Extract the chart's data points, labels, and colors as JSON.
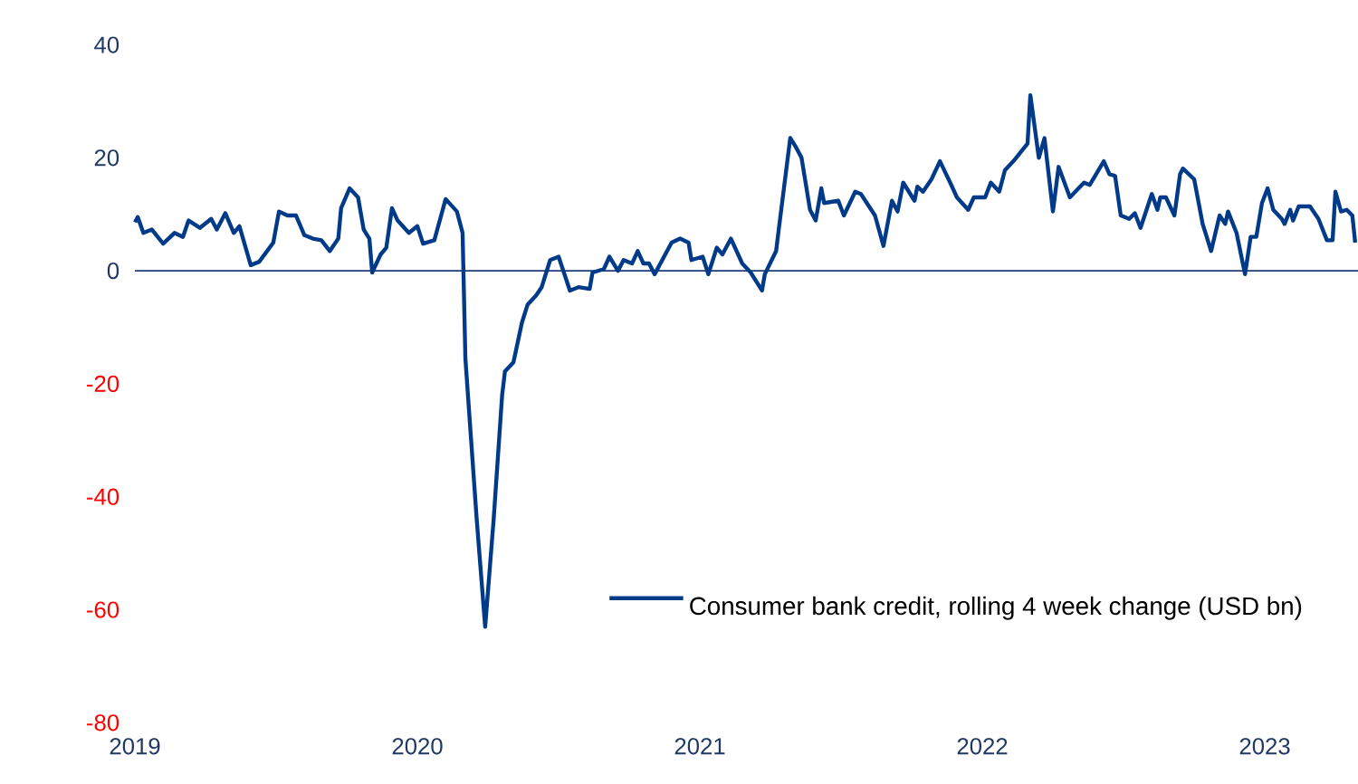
{
  "chart_data": {
    "type": "line",
    "xlim": [
      2019,
      2023.33
    ],
    "ylim": [
      -80,
      40
    ],
    "xticks": [
      2019,
      2020,
      2021,
      2022,
      2023
    ],
    "yticks": [
      -80,
      -60,
      -40,
      -20,
      0,
      20,
      40
    ],
    "legend": "bottom right",
    "ref_lines": [
      {
        "axis": "y",
        "value": 0,
        "color": "#1f3c78"
      }
    ],
    "series": [
      {
        "name": "Consumer bank credit, rolling 4 week change (USD bn)",
        "color": "#003a88",
        "x": [
          2019.0,
          2019.01,
          2019.03,
          2019.06,
          2019.1,
          2019.14,
          2019.17,
          2019.19,
          2019.23,
          2019.27,
          2019.29,
          2019.32,
          2019.35,
          2019.37,
          2019.41,
          2019.44,
          2019.49,
          2019.51,
          2019.54,
          2019.57,
          2019.6,
          2019.63,
          2019.66,
          2019.69,
          2019.72,
          2019.73,
          2019.76,
          2019.79,
          2019.81,
          2019.83,
          2019.84,
          2019.87,
          2019.89,
          2019.91,
          2019.93,
          2019.97,
          2020.0,
          2020.02,
          2020.06,
          2020.1,
          2020.14,
          2020.16,
          2020.17,
          2020.21,
          2020.24,
          2020.27,
          2020.3,
          2020.31,
          2020.34,
          2020.37,
          2020.39,
          2020.42,
          2020.44,
          2020.47,
          2020.5,
          2020.54,
          2020.57,
          2020.61,
          2020.62,
          2020.66,
          2020.68,
          2020.71,
          2020.73,
          2020.76,
          2020.78,
          2020.8,
          2020.82,
          2020.84,
          2020.9,
          2020.93,
          2020.96,
          2020.97,
          2021.01,
          2021.03,
          2021.06,
          2021.08,
          2021.11,
          2021.15,
          2021.18,
          2021.22,
          2021.23,
          2021.27,
          2021.28,
          2021.32,
          2021.34,
          2021.36,
          2021.39,
          2021.41,
          2021.43,
          2021.44,
          2021.49,
          2021.51,
          2021.55,
          2021.57,
          2021.62,
          2021.65,
          2021.68,
          2021.7,
          2021.72,
          2021.76,
          2021.77,
          2021.79,
          2021.82,
          2021.85,
          2021.89,
          2021.91,
          2021.95,
          2021.97,
          2022.01,
          2022.03,
          2022.06,
          2022.08,
          2022.11,
          2022.16,
          2022.17,
          2022.2,
          2022.22,
          2022.25,
          2022.27,
          2022.31,
          2022.36,
          2022.38,
          2022.43,
          2022.45,
          2022.47,
          2022.49,
          2022.52,
          2022.54,
          2022.56,
          2022.6,
          2022.62,
          2022.63,
          2022.65,
          2022.68,
          2022.7,
          2022.71,
          2022.75,
          2022.78,
          2022.81,
          2022.84,
          2022.86,
          2022.87,
          2022.9,
          2022.93,
          2022.95,
          2022.97,
          2022.99,
          2023.01,
          2023.03,
          2023.06,
          2023.07,
          2023.09,
          2023.1,
          2023.12,
          2023.16,
          2023.19,
          2023.22,
          2023.24,
          2023.25,
          2023.27,
          2023.29,
          2023.31,
          2023.32
        ],
        "values": [
          8.6,
          9.5,
          6.7,
          7.3,
          4.8,
          6.7,
          6.0,
          8.9,
          7.6,
          9.2,
          7.3,
          10.2,
          6.7,
          7.9,
          1.0,
          1.6,
          5.0,
          10.5,
          9.8,
          9.8,
          6.3,
          5.7,
          5.4,
          3.5,
          5.7,
          11.1,
          14.6,
          13.0,
          7.3,
          5.7,
          -0.3,
          2.9,
          4.1,
          11.1,
          8.9,
          6.7,
          7.9,
          4.8,
          5.4,
          12.7,
          10.5,
          6.7,
          -15.6,
          -44,
          -63,
          -44,
          -22,
          -17.8,
          -16.2,
          -9.2,
          -6.0,
          -4.4,
          -2.9,
          1.9,
          2.5,
          -3.5,
          -2.9,
          -3.2,
          -0.3,
          0.3,
          2.5,
          0,
          1.9,
          1.3,
          3.5,
          1.3,
          1.3,
          -0.6,
          5.0,
          5.7,
          5.0,
          1.9,
          2.5,
          -0.6,
          4.1,
          2.9,
          5.7,
          1.3,
          -0.3,
          -3.5,
          -0.6,
          3.5,
          7.6,
          23.5,
          21.9,
          20.0,
          10.8,
          8.9,
          14.6,
          12.0,
          12.4,
          9.8,
          14.0,
          13.6,
          9.8,
          4.4,
          12.4,
          10.5,
          15.6,
          12.4,
          14.9,
          14.0,
          16.2,
          19.4,
          15.2,
          13.0,
          10.8,
          13.0,
          13.0,
          15.6,
          14.0,
          17.8,
          19.4,
          22.5,
          31.1,
          20.0,
          23.5,
          10.5,
          18.4,
          13.0,
          15.6,
          15.2,
          19.4,
          17.1,
          16.8,
          9.8,
          9.2,
          10.2,
          7.6,
          13.6,
          10.8,
          13.0,
          13.0,
          9.8,
          17.1,
          18.1,
          16.2,
          8.3,
          3.5,
          9.8,
          8.3,
          10.5,
          6.7,
          -0.6,
          6.0,
          6.0,
          12.0,
          14.6,
          10.8,
          9.2,
          8.3,
          10.8,
          8.9,
          11.4,
          11.4,
          9.2,
          5.4,
          5.4,
          14.0,
          10.5,
          10.8,
          9.8,
          5.0
        ]
      }
    ]
  }
}
